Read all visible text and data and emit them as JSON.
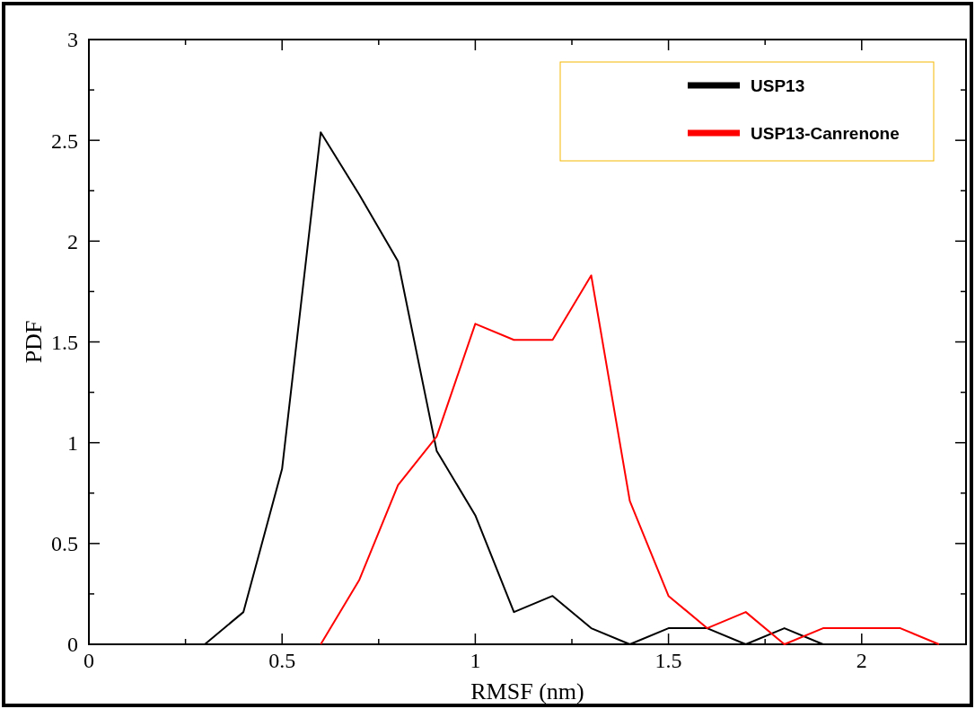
{
  "chart_data": {
    "type": "line",
    "xlabel": "RMSF (nm)",
    "ylabel": "PDF",
    "xlim": [
      0,
      2.27
    ],
    "ylim": [
      0,
      3
    ],
    "xticks": [
      0,
      {
        "value": 0.25,
        "label": null
      },
      0.5,
      {
        "value": 0.75,
        "label": null
      },
      1,
      {
        "value": 1.25,
        "label": null
      },
      1.5,
      {
        "value": 1.75,
        "label": null
      },
      2
    ],
    "yticks": [
      0,
      {
        "value": 0.25,
        "label": null
      },
      0.5,
      {
        "value": 0.75,
        "label": null
      },
      1,
      {
        "value": 1.25,
        "label": null
      },
      1.5,
      {
        "value": 1.75,
        "label": null
      },
      2,
      {
        "value": 2.25,
        "label": null
      },
      2.5,
      {
        "value": 2.75,
        "label": null
      },
      3
    ],
    "grid": false,
    "legend": "top right",
    "marker": "none",
    "line_style": "solid",
    "series": [
      {
        "name": "USP13",
        "color": "#000000",
        "x": [
          0.3,
          0.4,
          0.5,
          0.6,
          0.7,
          0.8,
          0.9,
          1.0,
          1.1,
          1.2,
          1.3,
          1.4,
          1.5,
          1.6,
          1.7,
          1.8,
          1.9
        ],
        "values": [
          0,
          0.16,
          0.87,
          2.54,
          2.23,
          1.9,
          0.96,
          0.64,
          0.16,
          0.24,
          0.08,
          0,
          0.08,
          0.08,
          0,
          0.08,
          0
        ]
      },
      {
        "name": "USP13-Canrenone",
        "color": "#ff0000",
        "x": [
          0.6,
          0.7,
          0.8,
          0.9,
          1.0,
          1.1,
          1.2,
          1.3,
          1.4,
          1.5,
          1.6,
          1.7,
          1.8,
          1.9,
          2.0,
          2.1,
          2.2
        ],
        "values": [
          0,
          0.32,
          0.79,
          1.03,
          1.59,
          1.51,
          1.51,
          1.83,
          0.71,
          0.24,
          0.08,
          0.16,
          0,
          0.08,
          0.08,
          0.08,
          0
        ]
      }
    ]
  }
}
